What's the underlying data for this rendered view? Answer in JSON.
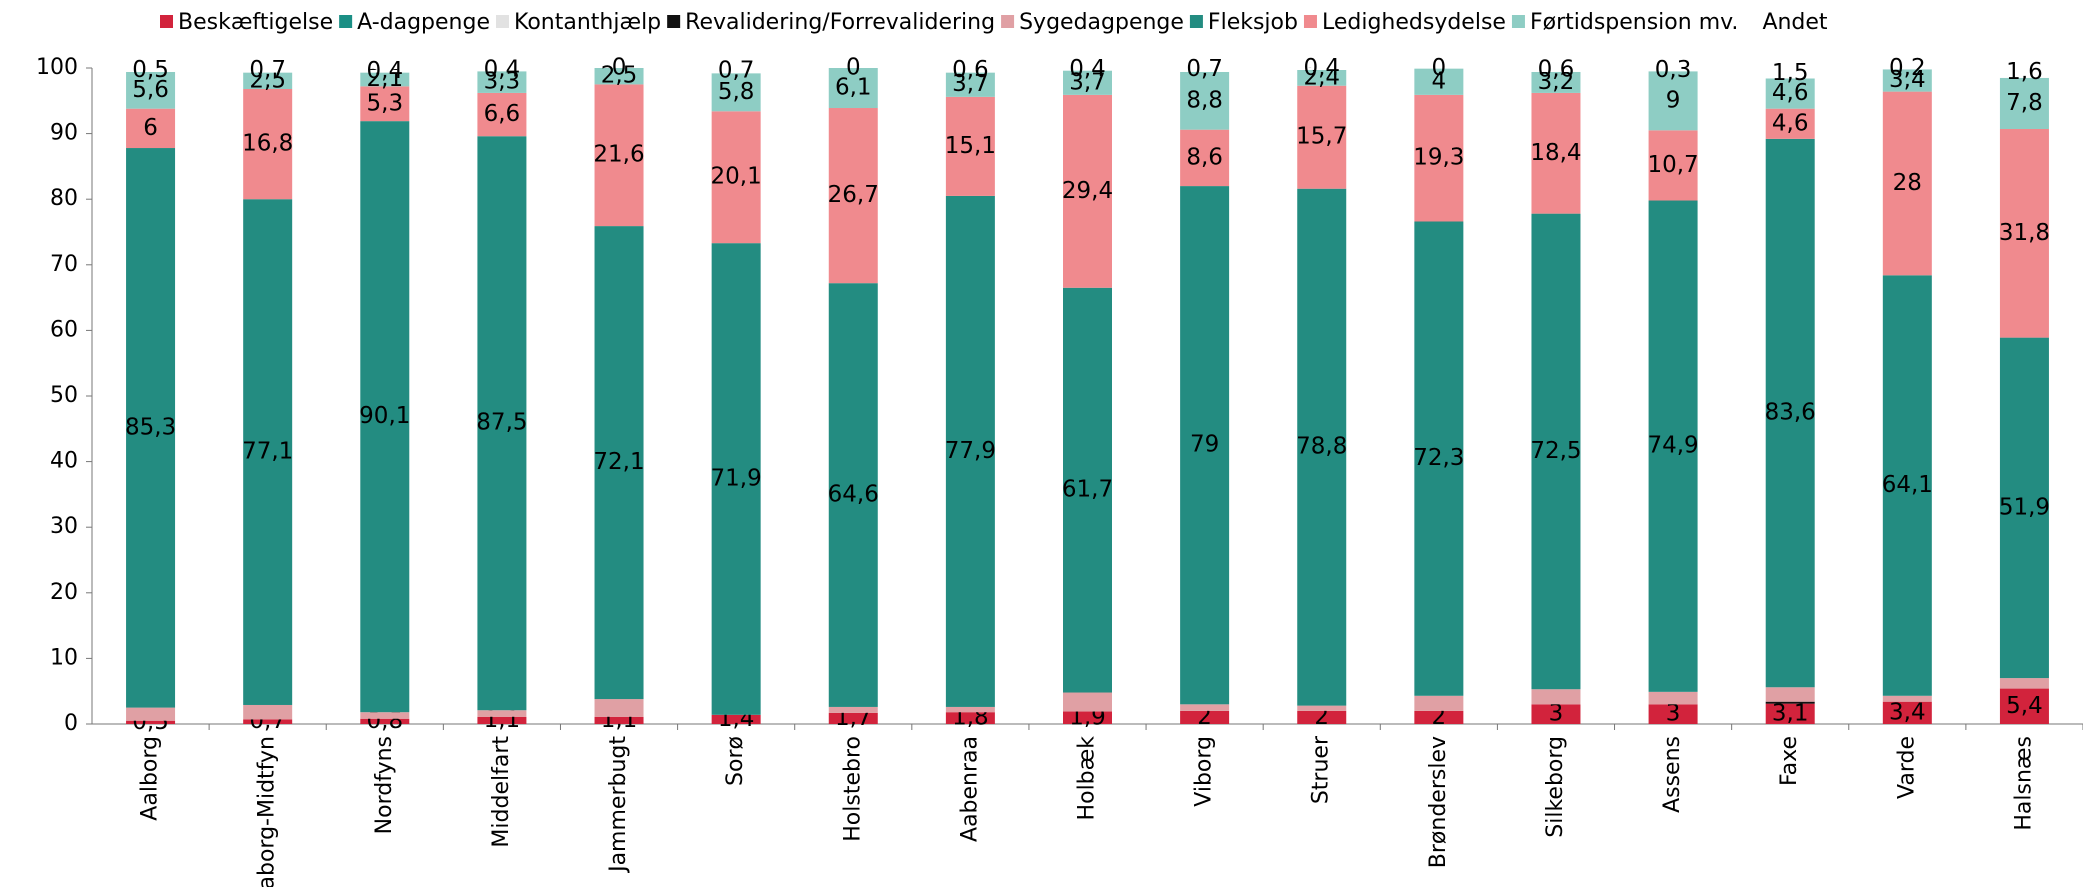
{
  "chart_data": {
    "type": "stacked_bar",
    "categories": [
      "Aalborg",
      "Faaborg-Midtfyn",
      "Nordfyns",
      "Middelfart",
      "Jammerbugt",
      "Sorø",
      "Holstebro",
      "Aabenraa",
      "Holbæk",
      "Viborg",
      "Struer",
      "Brønderslev",
      "Silkeborg",
      "Assens",
      "Faxe",
      "Varde",
      "Halsnæs"
    ],
    "ylim": [
      0,
      100
    ],
    "yticks": [
      0,
      10,
      20,
      30,
      40,
      50,
      60,
      70,
      80,
      90,
      100
    ],
    "series": [
      {
        "name": "Beskæftigelse",
        "color": "#d2233c",
        "values": [
          0.5,
          0.7,
          0.8,
          1.1,
          1.1,
          1.4,
          1.7,
          1.8,
          1.9,
          2,
          2,
          2,
          3,
          3,
          3.1,
          3.4,
          5.4
        ],
        "value_labels": [
          "0,5",
          "0,7",
          "0,8",
          "1,1",
          "1,1",
          "1,4",
          "1,7",
          "1,8",
          "1,9",
          "2",
          "2",
          "2",
          "3",
          "3",
          "3,1",
          "3,4",
          "5,4"
        ]
      },
      {
        "name": "A-dagpenge",
        "color": "#1b8f85",
        "values": [
          0,
          0,
          0,
          0,
          0,
          0,
          0,
          0,
          0,
          0,
          0,
          0,
          0,
          0,
          0,
          0,
          0
        ]
      },
      {
        "name": "Kontanthjælp",
        "color": "#e2e2e2",
        "values": [
          0,
          0,
          0,
          0,
          0,
          0,
          0,
          0,
          0,
          0,
          0,
          0,
          0,
          0,
          0,
          0,
          0
        ]
      },
      {
        "name": "Revalidering/Forrevalidering",
        "color": "#111111",
        "values": [
          0,
          0,
          0,
          0,
          0,
          0,
          0,
          0,
          0,
          0,
          0,
          0,
          0,
          0,
          0.3,
          0,
          0
        ]
      },
      {
        "name": "Sygedagpenge",
        "color": "#e0a0a4",
        "values": [
          2,
          2.2,
          1,
          1,
          2.7,
          0,
          0.9,
          0.8,
          2.9,
          1,
          0.8,
          2.3,
          2.3,
          1.9,
          2.2,
          0.9,
          1.6
        ]
      },
      {
        "name": "Fleksjob",
        "color": "#238c81",
        "values": [
          85.3,
          77.1,
          90.1,
          87.5,
          72.1,
          71.9,
          64.6,
          77.9,
          61.7,
          79,
          78.8,
          72.3,
          72.5,
          74.9,
          83.6,
          64.1,
          51.9
        ],
        "value_labels": [
          "85,3",
          "77,1",
          "90,1",
          "87,5",
          "72,1",
          "71,9",
          "64,6",
          "77,9",
          "61,7",
          "79",
          "78,8",
          "72,3",
          "72,5",
          "74,9",
          "83,6",
          "64,1",
          "51,9"
        ]
      },
      {
        "name": "Ledighedsydelse",
        "color": "#f08a8e",
        "values": [
          6,
          16.8,
          5.3,
          6.6,
          21.6,
          20.1,
          26.7,
          15.1,
          29.4,
          8.6,
          15.7,
          19.3,
          18.4,
          10.7,
          4.6,
          28,
          31.8
        ],
        "value_labels": [
          "6",
          "16,8",
          "5,3",
          "6,6",
          "21,6",
          "20,1",
          "26,7",
          "15,1",
          "29,4",
          "8,6",
          "15,7",
          "19,3",
          "18,4",
          "10,7",
          "4,6",
          "28",
          "31,8"
        ]
      },
      {
        "name": "Førtidspension mv.",
        "color": "#8ecdc4",
        "values": [
          5.6,
          2.5,
          2.1,
          3.3,
          2.5,
          5.8,
          6.1,
          3.7,
          3.7,
          8.8,
          2.4,
          4,
          3.2,
          9,
          4.6,
          3.4,
          7.8
        ],
        "value_labels": [
          "5,6",
          "2,5",
          "2,1",
          "3,3",
          "2,5",
          "5,8",
          "6,1",
          "3,7",
          "3,7",
          "8,8",
          "2,4",
          "4",
          "3,2",
          "9",
          "4,6",
          "3,4",
          "7,8"
        ]
      },
      {
        "name": "Andet",
        "color": "#ffffff",
        "values": [
          0.5,
          0.7,
          0.4,
          0.4,
          0,
          0.7,
          0,
          0.6,
          0.4,
          0.7,
          0.4,
          0,
          0.6,
          0.3,
          1.5,
          0.2,
          1.6
        ],
        "value_labels": [
          "0,5",
          "0,7",
          "0,4",
          "0,4",
          "0",
          "0,7",
          "0",
          "0,6",
          "0,4",
          "0,7",
          "0,4",
          "0",
          "0,6",
          "0,3",
          "1,5",
          "0,2",
          "1,6"
        ]
      }
    ]
  }
}
